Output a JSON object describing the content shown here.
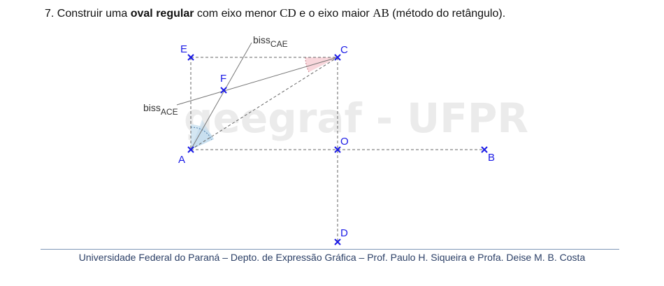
{
  "title": {
    "number": "7.",
    "before": "Construir uma",
    "bold": "oval regular",
    "middle": "com eixo menor",
    "minor_axis": "CD",
    "connector": "e o eixo maior",
    "major_axis": "AB",
    "after": "(método do retângulo)."
  },
  "watermark": "geegraf - UFPR",
  "points": {
    "A": "A",
    "B": "B",
    "C": "C",
    "D": "D",
    "E": "E",
    "F": "F",
    "O": "O"
  },
  "bisectors": {
    "cae": {
      "prefix": "biss",
      "sub": "CAE"
    },
    "ace": {
      "prefix": "biss",
      "sub": "ACE"
    }
  },
  "colors": {
    "points": "#1a1ae6",
    "angle_A": "#d4e7f3",
    "angle_C": "#f9d7dc",
    "footer_rule": "#7f97b7",
    "footer_text": "#2b3f66"
  },
  "footer": "Universidade Federal do Paraná – Depto. de Expressão Gráfica – Prof. Paulo H. Siqueira e Profa. Deise M. B. Costa"
}
